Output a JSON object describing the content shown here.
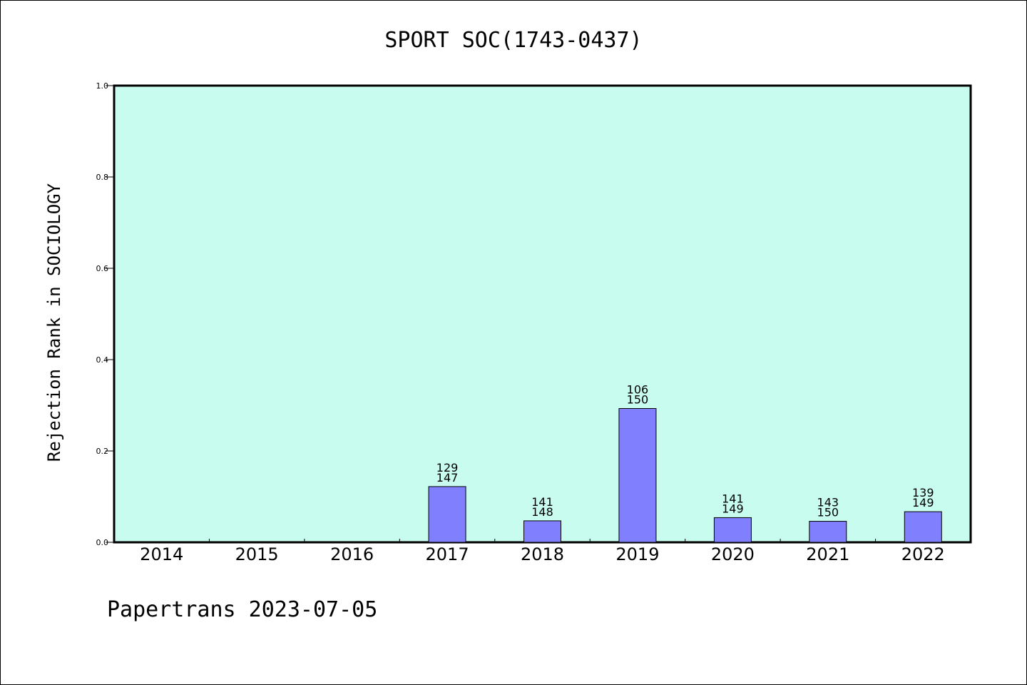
{
  "chart_data": {
    "type": "bar",
    "title": "SPORT SOC(1743-0437)",
    "xlabel": "",
    "ylabel": "Rejection Rank in SOCIOLOGY",
    "ylim": [
      0,
      1.0
    ],
    "yticks": [
      "0.0",
      "0.2",
      "0.4",
      "0.6",
      "0.8",
      "1.0"
    ],
    "categories": [
      "2014",
      "2015",
      "2016",
      "2017",
      "2018",
      "2019",
      "2020",
      "2021",
      "2022"
    ],
    "values": [
      null,
      null,
      null,
      0.122,
      0.047,
      0.293,
      0.054,
      0.046,
      0.067
    ],
    "data_labels": [
      null,
      null,
      null,
      [
        "129",
        "147"
      ],
      [
        "141",
        "148"
      ],
      [
        "106",
        "150"
      ],
      [
        "141",
        "149"
      ],
      [
        "143",
        "150"
      ],
      [
        "139",
        "149"
      ]
    ],
    "grid": false,
    "colors": {
      "background": "#c8fcee",
      "bar": "#8080ff",
      "bar_edge": "#000000"
    }
  },
  "footer": {
    "text": "Papertrans 2023-07-05"
  }
}
